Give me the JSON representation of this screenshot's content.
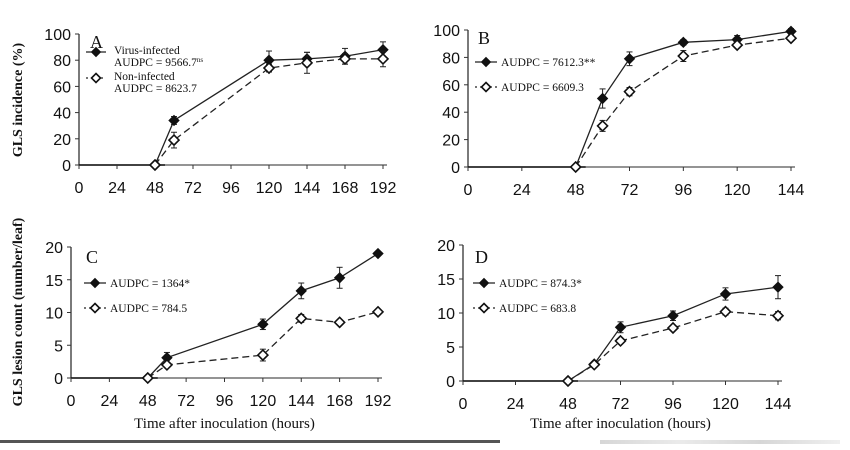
{
  "chart_data": [
    {
      "type": "line",
      "panel_label": "A",
      "ylabel": "GLS incidence (%)",
      "xlabel": "",
      "xlim": [
        0,
        192
      ],
      "ylim": [
        0,
        100
      ],
      "xticks": [
        0,
        24,
        48,
        72,
        96,
        120,
        144,
        168,
        192
      ],
      "yticks": [
        0,
        20,
        40,
        60,
        80,
        100
      ],
      "series": [
        {
          "name": "Virus-infected",
          "legend_line2": "AUDPC = 9566.7",
          "sup": "ns",
          "marker": "filled-diamond",
          "style": "solid",
          "x": [
            48,
            60,
            120,
            144,
            168,
            192
          ],
          "y": [
            0,
            34,
            80,
            81,
            83,
            88
          ],
          "err": [
            0,
            3,
            7,
            5,
            6,
            6
          ]
        },
        {
          "name": "Non-infected",
          "legend_line2": "AUDPC = 8623.7",
          "sup": "",
          "marker": "open-diamond",
          "style": "dashed",
          "x": [
            48,
            60,
            120,
            144,
            168,
            192
          ],
          "y": [
            0,
            19,
            74,
            78,
            81,
            81
          ],
          "err": [
            0,
            6,
            3,
            8,
            4,
            6
          ]
        }
      ]
    },
    {
      "type": "line",
      "panel_label": "B",
      "ylabel": "",
      "xlabel": "",
      "xlim": [
        0,
        144
      ],
      "ylim": [
        0,
        100
      ],
      "xticks": [
        0,
        24,
        48,
        72,
        96,
        120,
        144
      ],
      "yticks": [
        0,
        20,
        40,
        60,
        80,
        100
      ],
      "series": [
        {
          "name": "AUDPC = 7612.3**",
          "marker": "filled-diamond",
          "style": "solid",
          "x": [
            48,
            60,
            72,
            96,
            120,
            144
          ],
          "y": [
            0,
            50,
            79,
            91,
            93,
            99
          ],
          "err": [
            0,
            7,
            5,
            2,
            3,
            2
          ]
        },
        {
          "name": "AUDPC = 6609.3",
          "marker": "open-diamond",
          "style": "dashed",
          "x": [
            48,
            60,
            72,
            96,
            120,
            144
          ],
          "y": [
            0,
            30,
            55,
            81,
            89,
            94
          ],
          "err": [
            0,
            4,
            3,
            4,
            2,
            2
          ]
        }
      ]
    },
    {
      "type": "line",
      "panel_label": "C",
      "ylabel": "GLS lesion count (number/leaf)",
      "xlabel": "Time after inoculation (hours)",
      "xlim": [
        0,
        192
      ],
      "ylim": [
        0,
        20
      ],
      "xticks": [
        0,
        24,
        48,
        72,
        96,
        120,
        144,
        168,
        192
      ],
      "yticks": [
        0,
        5,
        10,
        15,
        20
      ],
      "series": [
        {
          "name": "AUDPC = 1364*",
          "marker": "filled-diamond",
          "style": "solid",
          "x": [
            48,
            60,
            120,
            144,
            168,
            192
          ],
          "y": [
            0,
            3.1,
            8.2,
            13.3,
            15.3,
            19
          ],
          "err": [
            0,
            0.8,
            0.8,
            1.2,
            1.6,
            0.2
          ]
        },
        {
          "name": "AUDPC = 784.5",
          "marker": "open-diamond",
          "style": "dashed",
          "x": [
            48,
            60,
            120,
            144,
            168,
            192
          ],
          "y": [
            0,
            2,
            3.5,
            9.1,
            8.5,
            10.1
          ],
          "err": [
            0,
            0.2,
            0.9,
            0.6,
            0.2,
            0.2
          ]
        }
      ]
    },
    {
      "type": "line",
      "panel_label": "D",
      "ylabel": "",
      "xlabel": "Time after inoculation (hours)",
      "xlim": [
        0,
        144
      ],
      "ylim": [
        0,
        20
      ],
      "xticks": [
        0,
        24,
        48,
        72,
        96,
        120,
        144
      ],
      "yticks": [
        0,
        5,
        10,
        15,
        20
      ],
      "series": [
        {
          "name": "AUDPC = 874.3*",
          "marker": "filled-diamond",
          "style": "solid",
          "x": [
            48,
            60,
            72,
            96,
            120,
            144
          ],
          "y": [
            0,
            2.5,
            7.9,
            9.6,
            12.8,
            13.8
          ],
          "err": [
            0,
            0.3,
            0.8,
            0.7,
            0.9,
            1.7
          ]
        },
        {
          "name": "AUDPC = 683.8",
          "marker": "open-diamond",
          "style": "dashed",
          "x": [
            48,
            60,
            72,
            96,
            120,
            144
          ],
          "y": [
            0,
            2.4,
            5.9,
            7.8,
            10.2,
            9.6
          ],
          "err": [
            0,
            0.2,
            0.3,
            0.3,
            0.5,
            0.6
          ]
        }
      ]
    }
  ],
  "colors": {
    "ink": "#111111",
    "axis": "#333333"
  }
}
